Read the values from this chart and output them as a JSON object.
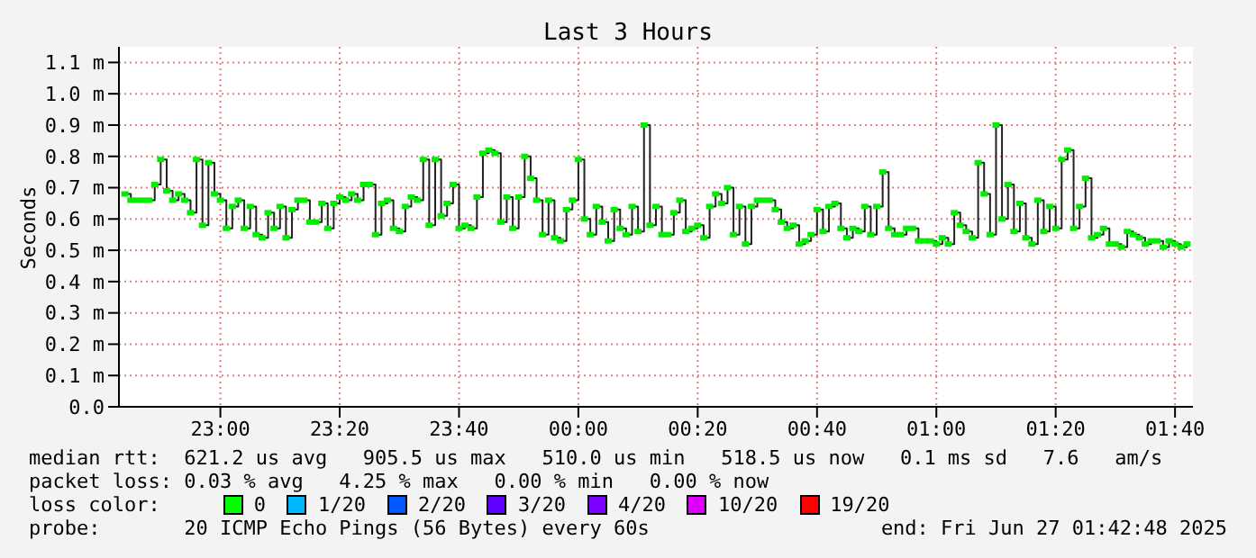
{
  "chart_data": {
    "type": "step",
    "title": "Last 3 Hours",
    "ylabel": "Seconds",
    "grid": true,
    "marker": "square",
    "xlim": [
      "2025-06-26T22:43",
      "2025-06-27T01:43"
    ],
    "xticks": [
      {
        "value": "2025-06-26T23:00",
        "label": "23:00"
      },
      {
        "value": "2025-06-26T23:20",
        "label": "23:20"
      },
      {
        "value": "2025-06-26T23:40",
        "label": "23:40"
      },
      {
        "value": "2025-06-27T00:00",
        "label": "00:00"
      },
      {
        "value": "2025-06-27T00:20",
        "label": "00:20"
      },
      {
        "value": "2025-06-27T00:40",
        "label": "00:40"
      },
      {
        "value": "2025-06-27T01:00",
        "label": "01:00"
      },
      {
        "value": "2025-06-27T01:20",
        "label": "01:20"
      },
      {
        "value": "2025-06-27T01:40",
        "label": "01:40"
      }
    ],
    "ylim": [
      0,
      1.15
    ],
    "yticks": [
      {
        "value": 0,
        "label": "0.0"
      },
      {
        "value": 0.1,
        "label": "0.1 m"
      },
      {
        "value": 0.2,
        "label": "0.2 m"
      },
      {
        "value": 0.3,
        "label": "0.3 m"
      },
      {
        "value": 0.4,
        "label": "0.4 m"
      },
      {
        "value": 0.5,
        "label": "0.5 m"
      },
      {
        "value": 0.6,
        "label": "0.6 m"
      },
      {
        "value": 0.7,
        "label": "0.7 m"
      },
      {
        "value": 0.8,
        "label": "0.8 m"
      },
      {
        "value": 0.9,
        "label": "0.9 m"
      },
      {
        "value": 1.0,
        "label": "1.0 m"
      },
      {
        "value": 1.1,
        "label": "1.1 m"
      }
    ],
    "x": [
      "2025-06-26T22:44",
      "2025-06-26T22:45",
      "2025-06-26T22:46",
      "2025-06-26T22:47",
      "2025-06-26T22:48",
      "2025-06-26T22:49",
      "2025-06-26T22:50",
      "2025-06-26T22:51",
      "2025-06-26T22:52",
      "2025-06-26T22:53",
      "2025-06-26T22:54",
      "2025-06-26T22:55",
      "2025-06-26T22:56",
      "2025-06-26T22:57",
      "2025-06-26T22:58",
      "2025-06-26T22:59",
      "2025-06-26T23:00",
      "2025-06-26T23:01",
      "2025-06-26T23:02",
      "2025-06-26T23:03",
      "2025-06-26T23:04",
      "2025-06-26T23:05",
      "2025-06-26T23:06",
      "2025-06-26T23:07",
      "2025-06-26T23:08",
      "2025-06-26T23:09",
      "2025-06-26T23:10",
      "2025-06-26T23:11",
      "2025-06-26T23:12",
      "2025-06-26T23:13",
      "2025-06-26T23:14",
      "2025-06-26T23:15",
      "2025-06-26T23:16",
      "2025-06-26T23:17",
      "2025-06-26T23:18",
      "2025-06-26T23:19",
      "2025-06-26T23:20",
      "2025-06-26T23:21",
      "2025-06-26T23:22",
      "2025-06-26T23:23",
      "2025-06-26T23:24",
      "2025-06-26T23:25",
      "2025-06-26T23:26",
      "2025-06-26T23:27",
      "2025-06-26T23:28",
      "2025-06-26T23:29",
      "2025-06-26T23:30",
      "2025-06-26T23:31",
      "2025-06-26T23:32",
      "2025-06-26T23:33",
      "2025-06-26T23:34",
      "2025-06-26T23:35",
      "2025-06-26T23:36",
      "2025-06-26T23:37",
      "2025-06-26T23:38",
      "2025-06-26T23:39",
      "2025-06-26T23:40",
      "2025-06-26T23:41",
      "2025-06-26T23:42",
      "2025-06-26T23:43",
      "2025-06-26T23:44",
      "2025-06-26T23:45",
      "2025-06-26T23:46",
      "2025-06-26T23:47",
      "2025-06-26T23:48",
      "2025-06-26T23:49",
      "2025-06-26T23:50",
      "2025-06-26T23:51",
      "2025-06-26T23:52",
      "2025-06-26T23:53",
      "2025-06-26T23:54",
      "2025-06-26T23:55",
      "2025-06-26T23:56",
      "2025-06-26T23:57",
      "2025-06-26T23:58",
      "2025-06-26T23:59",
      "2025-06-27T00:00",
      "2025-06-27T00:01",
      "2025-06-27T00:02",
      "2025-06-27T00:03",
      "2025-06-27T00:04",
      "2025-06-27T00:05",
      "2025-06-27T00:06",
      "2025-06-27T00:07",
      "2025-06-27T00:08",
      "2025-06-27T00:09",
      "2025-06-27T00:10",
      "2025-06-27T00:11",
      "2025-06-27T00:12",
      "2025-06-27T00:13",
      "2025-06-27T00:14",
      "2025-06-27T00:15",
      "2025-06-27T00:16",
      "2025-06-27T00:17",
      "2025-06-27T00:18",
      "2025-06-27T00:19",
      "2025-06-27T00:20",
      "2025-06-27T00:21",
      "2025-06-27T00:22",
      "2025-06-27T00:23",
      "2025-06-27T00:24",
      "2025-06-27T00:25",
      "2025-06-27T00:26",
      "2025-06-27T00:27",
      "2025-06-27T00:28",
      "2025-06-27T00:29",
      "2025-06-27T00:30",
      "2025-06-27T00:31",
      "2025-06-27T00:32",
      "2025-06-27T00:33",
      "2025-06-27T00:34",
      "2025-06-27T00:35",
      "2025-06-27T00:36",
      "2025-06-27T00:37",
      "2025-06-27T00:38",
      "2025-06-27T00:39",
      "2025-06-27T00:40",
      "2025-06-27T00:41",
      "2025-06-27T00:42",
      "2025-06-27T00:43",
      "2025-06-27T00:44",
      "2025-06-27T00:45",
      "2025-06-27T00:46",
      "2025-06-27T00:47",
      "2025-06-27T00:48",
      "2025-06-27T00:49",
      "2025-06-27T00:50",
      "2025-06-27T00:51",
      "2025-06-27T00:52",
      "2025-06-27T00:53",
      "2025-06-27T00:54",
      "2025-06-27T00:55",
      "2025-06-27T00:56",
      "2025-06-27T00:57",
      "2025-06-27T00:58",
      "2025-06-27T00:59",
      "2025-06-27T01:00",
      "2025-06-27T01:01",
      "2025-06-27T01:02",
      "2025-06-27T01:03",
      "2025-06-27T01:04",
      "2025-06-27T01:05",
      "2025-06-27T01:06",
      "2025-06-27T01:07",
      "2025-06-27T01:08",
      "2025-06-27T01:09",
      "2025-06-27T01:10",
      "2025-06-27T01:11",
      "2025-06-27T01:12",
      "2025-06-27T01:13",
      "2025-06-27T01:14",
      "2025-06-27T01:15",
      "2025-06-27T01:16",
      "2025-06-27T01:17",
      "2025-06-27T01:18",
      "2025-06-27T01:19",
      "2025-06-27T01:20",
      "2025-06-27T01:21",
      "2025-06-27T01:22",
      "2025-06-27T01:23",
      "2025-06-27T01:24",
      "2025-06-27T01:25",
      "2025-06-27T01:26",
      "2025-06-27T01:27",
      "2025-06-27T01:28",
      "2025-06-27T01:29",
      "2025-06-27T01:30",
      "2025-06-27T01:31",
      "2025-06-27T01:32",
      "2025-06-27T01:33",
      "2025-06-27T01:34",
      "2025-06-27T01:35",
      "2025-06-27T01:36",
      "2025-06-27T01:37",
      "2025-06-27T01:38",
      "2025-06-27T01:39",
      "2025-06-27T01:40",
      "2025-06-27T01:41",
      "2025-06-27T01:42"
    ],
    "series": [
      {
        "color": "#00ee00",
        "values": [
          0.68,
          0.66,
          0.66,
          0.66,
          0.66,
          0.71,
          0.79,
          0.69,
          0.66,
          0.68,
          0.66,
          0.62,
          0.79,
          0.58,
          0.78,
          0.68,
          0.66,
          0.57,
          0.64,
          0.66,
          0.57,
          0.64,
          0.55,
          0.54,
          0.62,
          0.57,
          0.64,
          0.54,
          0.63,
          0.66,
          0.66,
          0.59,
          0.59,
          0.65,
          0.57,
          0.65,
          0.67,
          0.66,
          0.68,
          0.66,
          0.71,
          0.71,
          0.55,
          0.65,
          0.66,
          0.57,
          0.56,
          0.64,
          0.67,
          0.66,
          0.79,
          0.58,
          0.79,
          0.61,
          0.65,
          0.71,
          0.57,
          0.58,
          0.57,
          0.67,
          0.81,
          0.82,
          0.81,
          0.59,
          0.67,
          0.57,
          0.67,
          0.8,
          0.73,
          0.66,
          0.55,
          0.66,
          0.54,
          0.53,
          0.63,
          0.66,
          0.79,
          0.6,
          0.55,
          0.64,
          0.59,
          0.53,
          0.63,
          0.57,
          0.55,
          0.64,
          0.56,
          0.9,
          0.58,
          0.64,
          0.55,
          0.55,
          0.62,
          0.66,
          0.56,
          0.57,
          0.58,
          0.54,
          0.64,
          0.68,
          0.65,
          0.7,
          0.55,
          0.64,
          0.52,
          0.64,
          0.66,
          0.66,
          0.66,
          0.63,
          0.59,
          0.57,
          0.58,
          0.52,
          0.53,
          0.55,
          0.63,
          0.56,
          0.64,
          0.65,
          0.57,
          0.54,
          0.57,
          0.56,
          0.64,
          0.55,
          0.64,
          0.75,
          0.57,
          0.55,
          0.55,
          0.57,
          0.57,
          0.53,
          0.53,
          0.53,
          0.52,
          0.54,
          0.52,
          0.62,
          0.58,
          0.56,
          0.54,
          0.78,
          0.68,
          0.55,
          0.9,
          0.6,
          0.71,
          0.56,
          0.65,
          0.54,
          0.52,
          0.66,
          0.56,
          0.64,
          0.57,
          0.79,
          0.82,
          0.57,
          0.64,
          0.73,
          0.54,
          0.55,
          0.57,
          0.52,
          0.52,
          0.51,
          0.56,
          0.55,
          0.54,
          0.52,
          0.53,
          0.53,
          0.51,
          0.53,
          0.52,
          0.51,
          0.52
        ]
      }
    ],
    "annotations": [
      "median rtt:  621.2 us avg   905.5 us max   510.0 us min   518.5 us now   0.1 ms sd   7.6   am/s",
      "packet loss: 0.03 % avg   4.25 % max   0.00 % min   0.00 % now",
      "loss color:",
      "0",
      "1/20",
      "2/20",
      "3/20",
      "4/20",
      "10/20",
      "19/20",
      "probe:       20 ICMP Echo Pings (56 Bytes) every 60s",
      "end: Fri Jun 27 01:42:48 2025"
    ]
  }
}
